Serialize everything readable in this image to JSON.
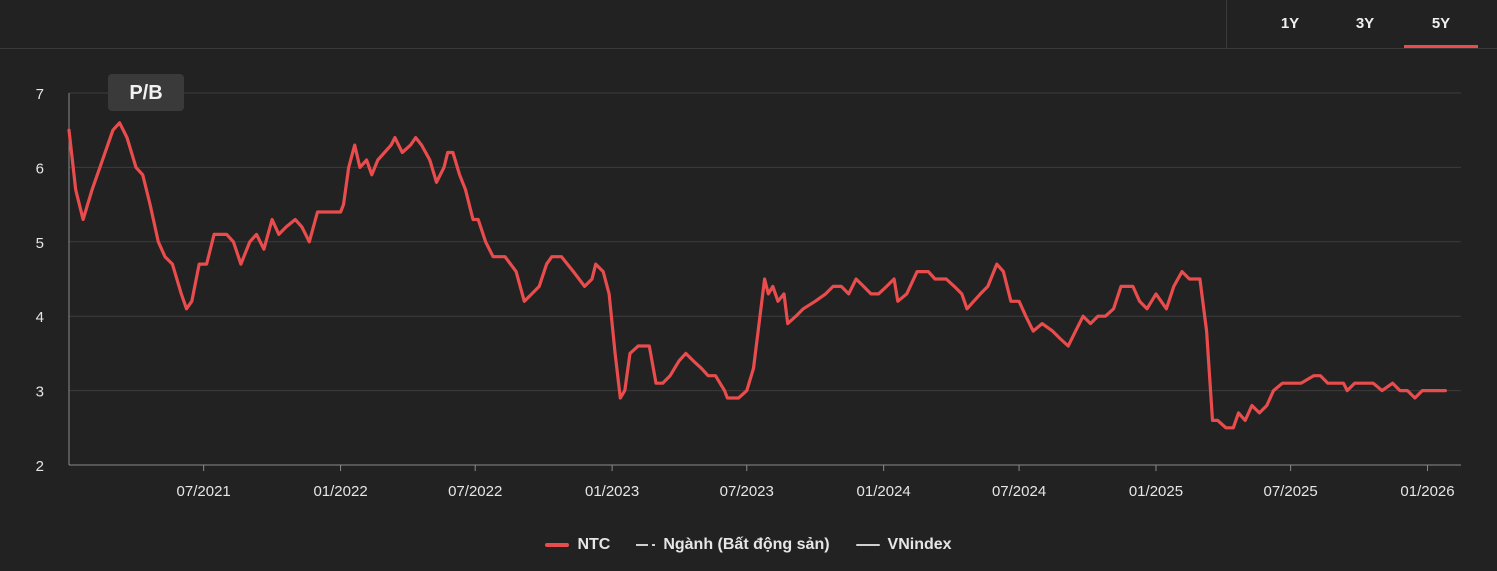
{
  "tabs": [
    {
      "label": "1Y",
      "active": false
    },
    {
      "label": "3Y",
      "active": false
    },
    {
      "label": "5Y",
      "active": true
    }
  ],
  "colors": {
    "ntc": "#e84c4c",
    "grid": "#3c3c3c",
    "axis": "#8a8a8a",
    "text": "#e6e6e6",
    "badge_bg": "#3a3a3a"
  },
  "chart_data": {
    "type": "line",
    "title": "P/B",
    "ylim": [
      2,
      7
    ],
    "yticks": [
      "7",
      "6",
      "5",
      "4",
      "3",
      "2"
    ],
    "xlim": [
      "2021-01",
      "2026-02-15"
    ],
    "xticks": [
      "07/2021",
      "01/2022",
      "07/2022",
      "01/2023",
      "07/2023",
      "01/2024",
      "07/2024",
      "01/2025",
      "07/2025",
      "01/2026"
    ],
    "grid": true,
    "legend_position": "bottom",
    "legend": [
      {
        "name": "NTC",
        "style": "solid",
        "color": "#e84c4c"
      },
      {
        "name": "Ngành (Bất động sản)",
        "style": "dash-dot",
        "color": "#d0d0d0"
      },
      {
        "name": "VNindex",
        "style": "solid",
        "color": "#d0d0d0"
      }
    ],
    "series": [
      {
        "name": "NTC",
        "points": [
          [
            "2021-01-01",
            6.5
          ],
          [
            "2021-01-10",
            5.7
          ],
          [
            "2021-01-20",
            5.3
          ],
          [
            "2021-02-01",
            5.7
          ],
          [
            "2021-02-15",
            6.1
          ],
          [
            "2021-03-01",
            6.5
          ],
          [
            "2021-03-10",
            6.6
          ],
          [
            "2021-03-20",
            6.4
          ],
          [
            "2021-04-01",
            6.0
          ],
          [
            "2021-04-10",
            5.9
          ],
          [
            "2021-04-20",
            5.5
          ],
          [
            "2021-05-01",
            5.0
          ],
          [
            "2021-05-10",
            4.8
          ],
          [
            "2021-05-20",
            4.7
          ],
          [
            "2021-06-01",
            4.3
          ],
          [
            "2021-06-08",
            4.1
          ],
          [
            "2021-06-15",
            4.2
          ],
          [
            "2021-06-25",
            4.7
          ],
          [
            "2021-07-05",
            4.7
          ],
          [
            "2021-07-15",
            5.1
          ],
          [
            "2021-08-01",
            5.1
          ],
          [
            "2021-08-10",
            5.0
          ],
          [
            "2021-08-20",
            4.7
          ],
          [
            "2021-09-01",
            5.0
          ],
          [
            "2021-09-10",
            5.1
          ],
          [
            "2021-09-20",
            4.9
          ],
          [
            "2021-10-01",
            5.3
          ],
          [
            "2021-10-10",
            5.1
          ],
          [
            "2021-10-20",
            5.2
          ],
          [
            "2021-11-01",
            5.3
          ],
          [
            "2021-11-10",
            5.2
          ],
          [
            "2021-11-20",
            5.0
          ],
          [
            "2021-12-01",
            5.4
          ],
          [
            "2021-12-15",
            5.4
          ],
          [
            "2022-01-01",
            5.4
          ],
          [
            "2022-01-05",
            5.5
          ],
          [
            "2022-01-12",
            6.0
          ],
          [
            "2022-01-20",
            6.3
          ],
          [
            "2022-01-27",
            6.0
          ],
          [
            "2022-02-05",
            6.1
          ],
          [
            "2022-02-12",
            5.9
          ],
          [
            "2022-02-20",
            6.1
          ],
          [
            "2022-03-01",
            6.2
          ],
          [
            "2022-03-10",
            6.3
          ],
          [
            "2022-03-15",
            6.4
          ],
          [
            "2022-03-25",
            6.2
          ],
          [
            "2022-04-05",
            6.3
          ],
          [
            "2022-04-12",
            6.4
          ],
          [
            "2022-04-20",
            6.3
          ],
          [
            "2022-05-01",
            6.1
          ],
          [
            "2022-05-10",
            5.8
          ],
          [
            "2022-05-20",
            6.0
          ],
          [
            "2022-05-25",
            6.2
          ],
          [
            "2022-06-01",
            6.2
          ],
          [
            "2022-06-10",
            5.9
          ],
          [
            "2022-06-18",
            5.7
          ],
          [
            "2022-06-28",
            5.3
          ],
          [
            "2022-07-05",
            5.3
          ],
          [
            "2022-07-15",
            5.0
          ],
          [
            "2022-07-25",
            4.8
          ],
          [
            "2022-08-10",
            4.8
          ],
          [
            "2022-08-25",
            4.6
          ],
          [
            "2022-09-05",
            4.2
          ],
          [
            "2022-09-15",
            4.3
          ],
          [
            "2022-09-25",
            4.4
          ],
          [
            "2022-10-05",
            4.7
          ],
          [
            "2022-10-12",
            4.8
          ],
          [
            "2022-10-25",
            4.8
          ],
          [
            "2022-11-10",
            4.6
          ],
          [
            "2022-11-25",
            4.4
          ],
          [
            "2022-12-05",
            4.5
          ],
          [
            "2022-12-10",
            4.7
          ],
          [
            "2022-12-20",
            4.6
          ],
          [
            "2022-12-28",
            4.3
          ],
          [
            "2023-01-05",
            3.5
          ],
          [
            "2023-01-12",
            2.9
          ],
          [
            "2023-01-18",
            3.0
          ],
          [
            "2023-01-25",
            3.5
          ],
          [
            "2023-02-05",
            3.6
          ],
          [
            "2023-02-20",
            3.6
          ],
          [
            "2023-03-01",
            3.1
          ],
          [
            "2023-03-10",
            3.1
          ],
          [
            "2023-03-20",
            3.2
          ],
          [
            "2023-04-01",
            3.4
          ],
          [
            "2023-04-10",
            3.5
          ],
          [
            "2023-04-20",
            3.4
          ],
          [
            "2023-05-01",
            3.3
          ],
          [
            "2023-05-10",
            3.2
          ],
          [
            "2023-05-20",
            3.2
          ],
          [
            "2023-06-01",
            3.0
          ],
          [
            "2023-06-05",
            2.9
          ],
          [
            "2023-06-20",
            2.9
          ],
          [
            "2023-07-01",
            3.0
          ],
          [
            "2023-07-10",
            3.3
          ],
          [
            "2023-07-25",
            4.5
          ],
          [
            "2023-07-30",
            4.3
          ],
          [
            "2023-08-05",
            4.4
          ],
          [
            "2023-08-12",
            4.2
          ],
          [
            "2023-08-20",
            4.3
          ],
          [
            "2023-08-25",
            3.9
          ],
          [
            "2023-09-05",
            4.0
          ],
          [
            "2023-09-15",
            4.1
          ],
          [
            "2023-10-01",
            4.2
          ],
          [
            "2023-10-15",
            4.3
          ],
          [
            "2023-10-25",
            4.4
          ],
          [
            "2023-11-05",
            4.4
          ],
          [
            "2023-11-15",
            4.3
          ],
          [
            "2023-11-25",
            4.5
          ],
          [
            "2023-12-05",
            4.4
          ],
          [
            "2023-12-15",
            4.3
          ],
          [
            "2023-12-25",
            4.3
          ],
          [
            "2024-01-05",
            4.4
          ],
          [
            "2024-01-15",
            4.5
          ],
          [
            "2024-01-20",
            4.2
          ],
          [
            "2024-02-01",
            4.3
          ],
          [
            "2024-02-15",
            4.6
          ],
          [
            "2024-03-01",
            4.6
          ],
          [
            "2024-03-10",
            4.5
          ],
          [
            "2024-03-25",
            4.5
          ],
          [
            "2024-04-05",
            4.4
          ],
          [
            "2024-04-15",
            4.3
          ],
          [
            "2024-04-22",
            4.1
          ],
          [
            "2024-05-01",
            4.2
          ],
          [
            "2024-05-10",
            4.3
          ],
          [
            "2024-05-20",
            4.4
          ],
          [
            "2024-06-01",
            4.7
          ],
          [
            "2024-06-10",
            4.6
          ],
          [
            "2024-06-20",
            4.2
          ],
          [
            "2024-07-01",
            4.2
          ],
          [
            "2024-07-10",
            4.0
          ],
          [
            "2024-07-20",
            3.8
          ],
          [
            "2024-08-01",
            3.9
          ],
          [
            "2024-08-15",
            3.8
          ],
          [
            "2024-08-25",
            3.7
          ],
          [
            "2024-09-05",
            3.6
          ],
          [
            "2024-09-15",
            3.8
          ],
          [
            "2024-09-25",
            4.0
          ],
          [
            "2024-10-05",
            3.9
          ],
          [
            "2024-10-15",
            4.0
          ],
          [
            "2024-10-25",
            4.0
          ],
          [
            "2024-11-05",
            4.1
          ],
          [
            "2024-11-15",
            4.4
          ],
          [
            "2024-12-01",
            4.4
          ],
          [
            "2024-12-10",
            4.2
          ],
          [
            "2024-12-20",
            4.1
          ],
          [
            "2025-01-01",
            4.3
          ],
          [
            "2025-01-15",
            4.1
          ],
          [
            "2025-01-25",
            4.4
          ],
          [
            "2025-02-05",
            4.6
          ],
          [
            "2025-02-15",
            4.5
          ],
          [
            "2025-03-01",
            4.5
          ],
          [
            "2025-03-10",
            3.8
          ],
          [
            "2025-03-18",
            2.6
          ],
          [
            "2025-03-25",
            2.6
          ],
          [
            "2025-04-05",
            2.5
          ],
          [
            "2025-04-15",
            2.5
          ],
          [
            "2025-04-22",
            2.7
          ],
          [
            "2025-05-01",
            2.6
          ],
          [
            "2025-05-10",
            2.8
          ],
          [
            "2025-05-20",
            2.7
          ],
          [
            "2025-05-30",
            2.8
          ],
          [
            "2025-06-08",
            3.0
          ],
          [
            "2025-06-20",
            3.1
          ],
          [
            "2025-07-01",
            3.1
          ],
          [
            "2025-07-15",
            3.1
          ],
          [
            "2025-08-01",
            3.2
          ],
          [
            "2025-08-10",
            3.2
          ],
          [
            "2025-08-20",
            3.1
          ],
          [
            "2025-09-01",
            3.1
          ],
          [
            "2025-09-10",
            3.1
          ],
          [
            "2025-09-15",
            3.0
          ],
          [
            "2025-09-25",
            3.1
          ],
          [
            "2025-10-05",
            3.1
          ],
          [
            "2025-10-20",
            3.1
          ],
          [
            "2025-11-01",
            3.0
          ],
          [
            "2025-11-15",
            3.1
          ],
          [
            "2025-11-25",
            3.0
          ],
          [
            "2025-12-05",
            3.0
          ],
          [
            "2025-12-15",
            2.9
          ],
          [
            "2025-12-25",
            3.0
          ],
          [
            "2026-01-10",
            3.0
          ],
          [
            "2026-01-25",
            3.0
          ]
        ]
      }
    ]
  }
}
